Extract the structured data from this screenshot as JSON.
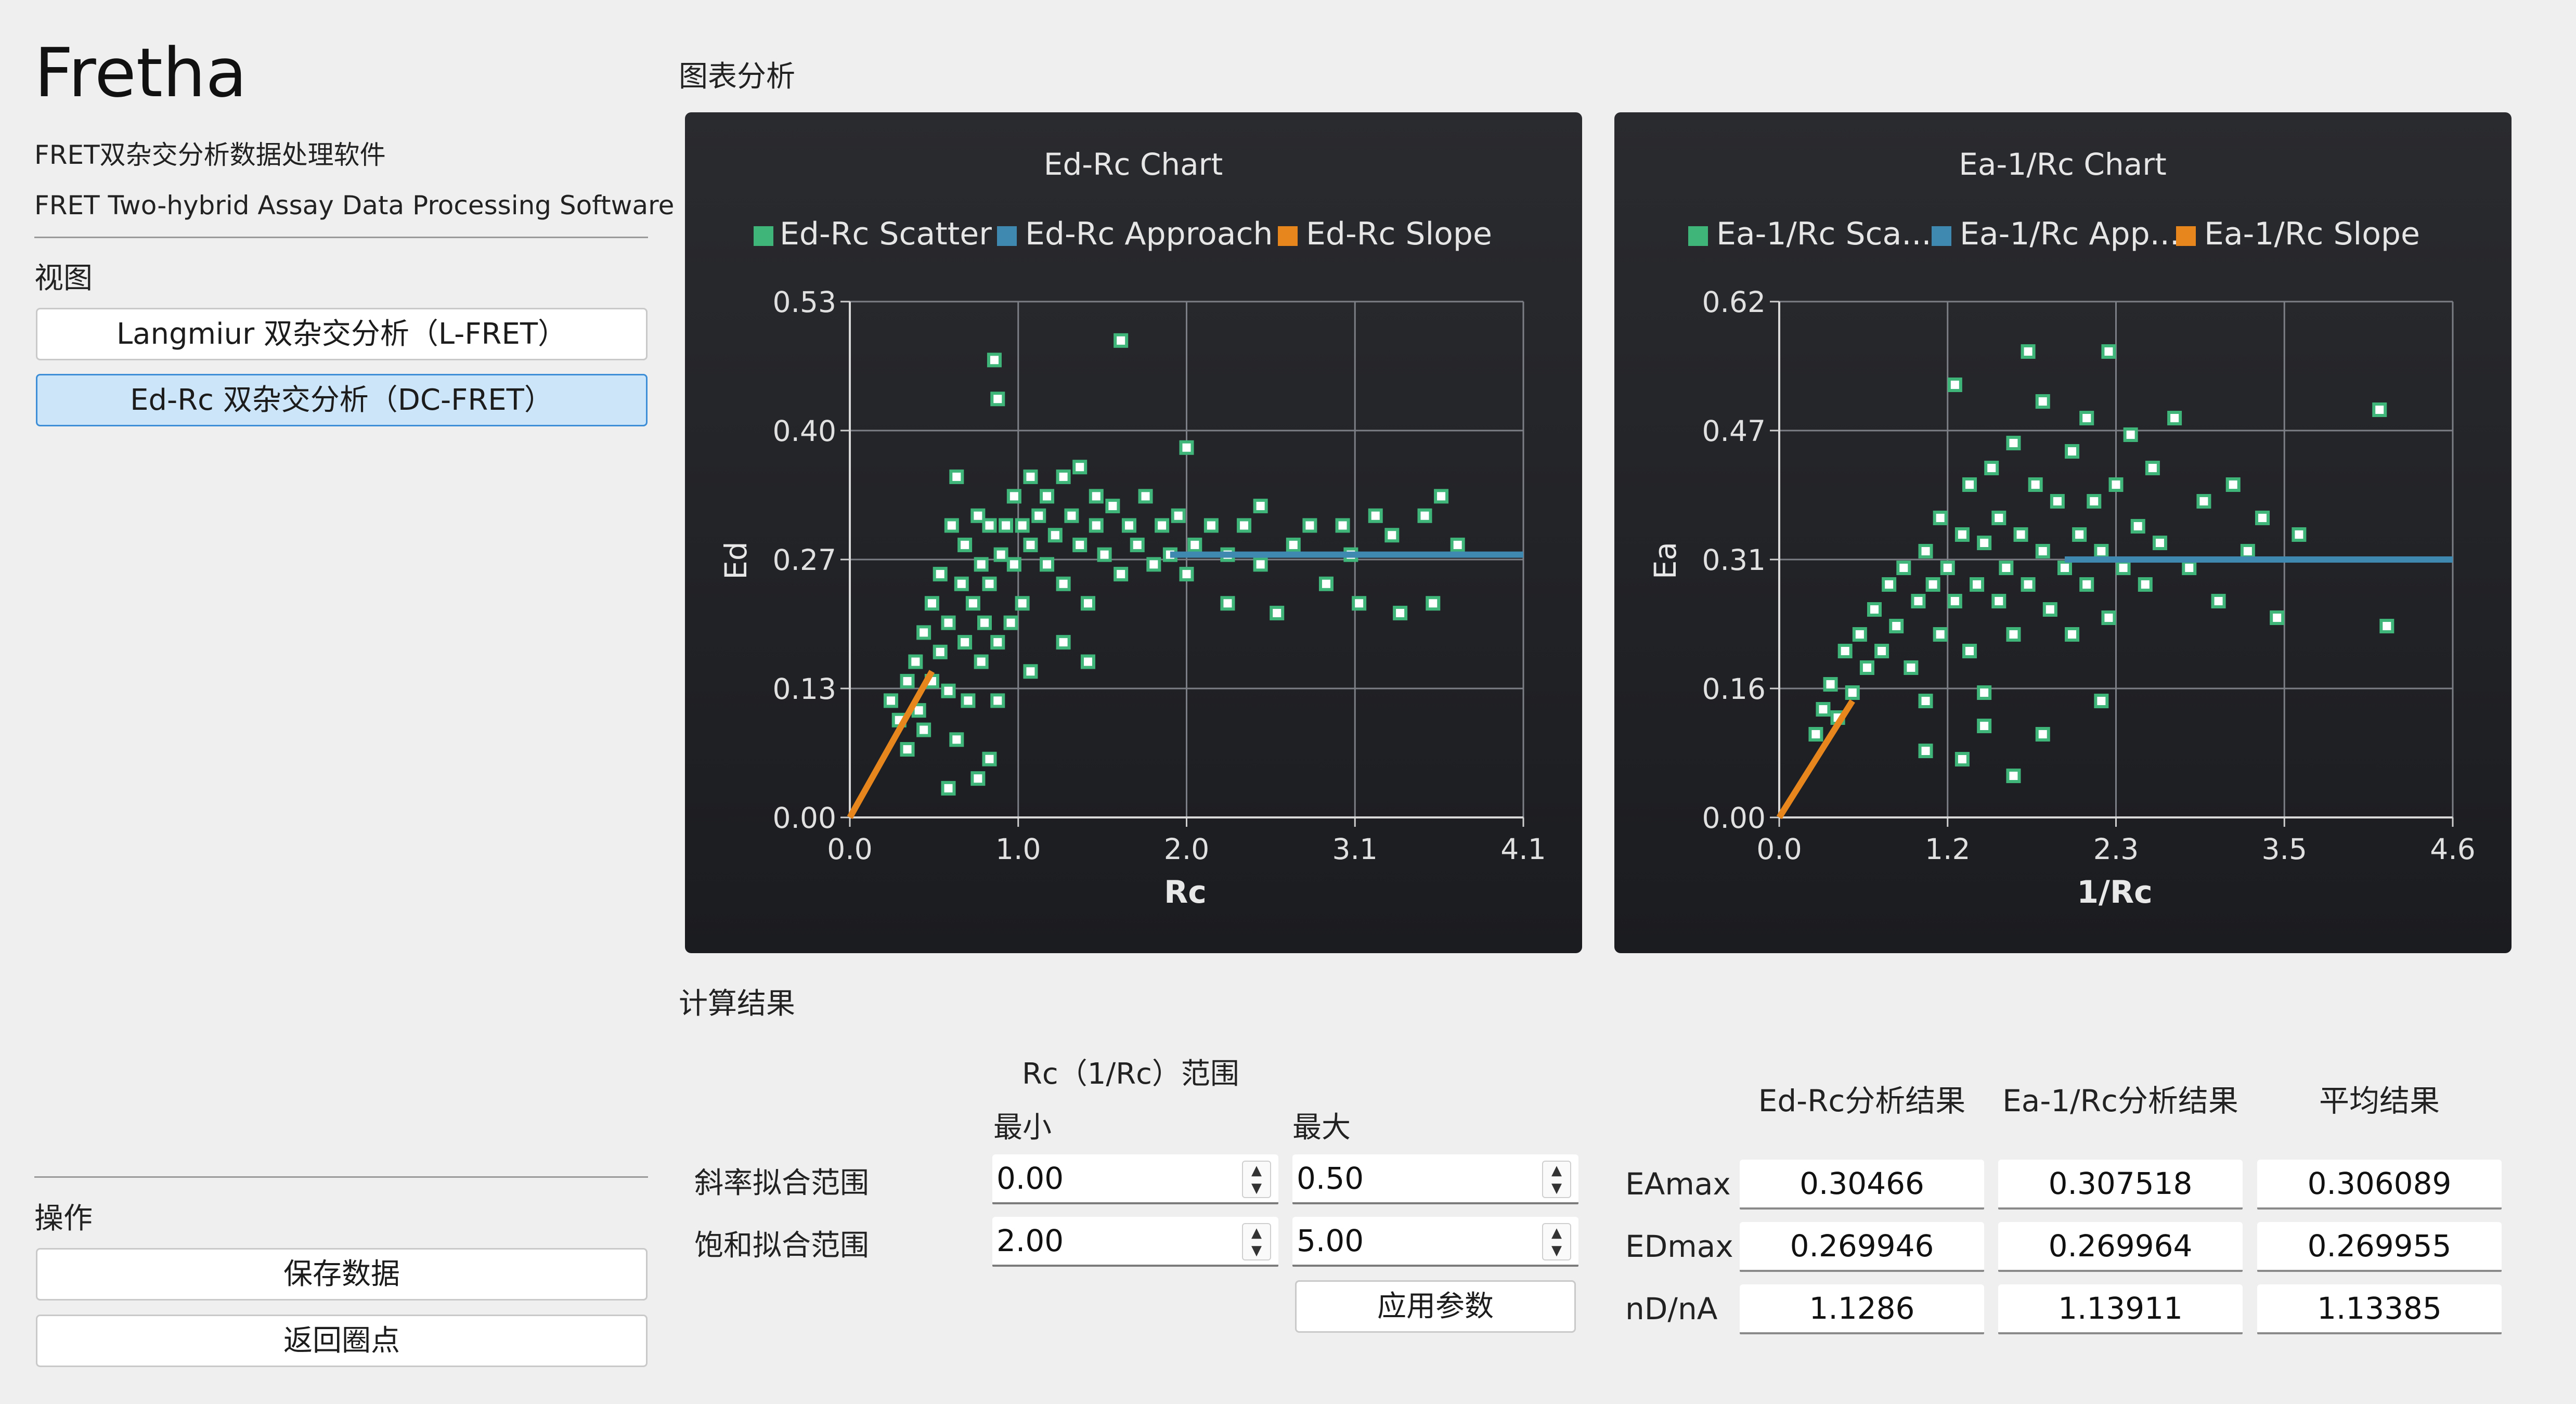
{
  "app": {
    "title": "Fretha",
    "subtitle_cn": "FRET双杂交分析数据处理软件",
    "subtitle_en": "FRET Two-hybrid Assay Data Processing Software"
  },
  "sidebar": {
    "view_label": "视图",
    "view_buttons": [
      {
        "label": "Langmiur 双杂交分析（L-FRET）",
        "active": false
      },
      {
        "label": "Ed-Rc 双杂交分析（DC-FRET）",
        "active": true
      }
    ],
    "ops_label": "操作",
    "op_buttons": [
      {
        "label": "保存数据"
      },
      {
        "label": "返回圈点"
      }
    ]
  },
  "main": {
    "chart_section_label": "图表分析",
    "results_section_label": "计算结果"
  },
  "params": {
    "range_header": "Rc（1/Rc）范围",
    "min_label": "最小",
    "max_label": "最大",
    "rows": [
      {
        "label": "斜率拟合范围",
        "min": "0.00",
        "max": "0.50"
      },
      {
        "label": "饱和拟合范围",
        "min": "2.00",
        "max": "5.00"
      }
    ],
    "apply_label": "应用参数"
  },
  "results": {
    "headers": [
      "Ed-Rc分析结果",
      "Ea-1/Rc分析结果",
      "平均结果"
    ],
    "rows": [
      {
        "label": "EAmax",
        "values": [
          "0.30466",
          "0.307518",
          "0.306089"
        ]
      },
      {
        "label": "EDmax",
        "values": [
          "0.269946",
          "0.269964",
          "0.269955"
        ]
      },
      {
        "label": "nD/nA",
        "values": [
          "1.1286",
          "1.13911",
          "1.13385"
        ]
      }
    ]
  },
  "colors": {
    "scatter": "#3fb57a",
    "approach": "#3f88b0",
    "slope": "#e8861e"
  },
  "chart_data": [
    {
      "type": "scatter",
      "title": "Ed-Rc Chart",
      "xlabel": "Rc",
      "ylabel": "Ed",
      "xlim": [
        0.0,
        4.1
      ],
      "ylim": [
        0.0,
        0.53
      ],
      "xticks": [
        "0.0",
        "1.0",
        "2.0",
        "3.1",
        "4.1"
      ],
      "yticks": [
        "0.00",
        "0.13",
        "0.27",
        "0.40",
        "0.53"
      ],
      "grid": true,
      "legend_position": "top",
      "series": [
        {
          "name": "Ed-Rc Scatter",
          "kind": "scatter",
          "points": [
            [
              0.25,
              0.12
            ],
            [
              0.3,
              0.1
            ],
            [
              0.35,
              0.14
            ],
            [
              0.4,
              0.16
            ],
            [
              0.42,
              0.11
            ],
            [
              0.45,
              0.19
            ],
            [
              0.5,
              0.14
            ],
            [
              0.5,
              0.22
            ],
            [
              0.55,
              0.17
            ],
            [
              0.55,
              0.25
            ],
            [
              0.6,
              0.2
            ],
            [
              0.6,
              0.13
            ],
            [
              0.62,
              0.3
            ],
            [
              0.65,
              0.35
            ],
            [
              0.68,
              0.24
            ],
            [
              0.7,
              0.18
            ],
            [
              0.7,
              0.28
            ],
            [
              0.72,
              0.12
            ],
            [
              0.75,
              0.22
            ],
            [
              0.78,
              0.31
            ],
            [
              0.8,
              0.26
            ],
            [
              0.8,
              0.16
            ],
            [
              0.82,
              0.2
            ],
            [
              0.85,
              0.3
            ],
            [
              0.85,
              0.24
            ],
            [
              0.88,
              0.47
            ],
            [
              0.9,
              0.43
            ],
            [
              0.9,
              0.18
            ],
            [
              0.92,
              0.27
            ],
            [
              0.95,
              0.3
            ],
            [
              0.98,
              0.2
            ],
            [
              1.0,
              0.33
            ],
            [
              1.0,
              0.26
            ],
            [
              1.05,
              0.3
            ],
            [
              1.05,
              0.22
            ],
            [
              1.1,
              0.28
            ],
            [
              1.1,
              0.35
            ],
            [
              1.15,
              0.31
            ],
            [
              1.2,
              0.26
            ],
            [
              1.2,
              0.33
            ],
            [
              1.25,
              0.29
            ],
            [
              1.3,
              0.35
            ],
            [
              1.3,
              0.24
            ],
            [
              1.35,
              0.31
            ],
            [
              1.4,
              0.28
            ],
            [
              1.4,
              0.36
            ],
            [
              1.45,
              0.22
            ],
            [
              1.5,
              0.3
            ],
            [
              1.5,
              0.33
            ],
            [
              1.55,
              0.27
            ],
            [
              1.6,
              0.32
            ],
            [
              1.65,
              0.49
            ],
            [
              1.65,
              0.25
            ],
            [
              1.7,
              0.3
            ],
            [
              1.75,
              0.28
            ],
            [
              1.8,
              0.33
            ],
            [
              1.85,
              0.26
            ],
            [
              1.9,
              0.3
            ],
            [
              1.95,
              0.27
            ],
            [
              2.0,
              0.31
            ],
            [
              2.05,
              0.38
            ],
            [
              2.05,
              0.25
            ],
            [
              2.1,
              0.28
            ],
            [
              2.2,
              0.3
            ],
            [
              2.3,
              0.22
            ],
            [
              2.3,
              0.27
            ],
            [
              2.4,
              0.3
            ],
            [
              2.5,
              0.26
            ],
            [
              2.5,
              0.32
            ],
            [
              2.6,
              0.21
            ],
            [
              2.7,
              0.28
            ],
            [
              2.8,
              0.3
            ],
            [
              2.9,
              0.24
            ],
            [
              3.0,
              0.3
            ],
            [
              3.05,
              0.27
            ],
            [
              3.1,
              0.22
            ],
            [
              3.2,
              0.31
            ],
            [
              3.3,
              0.29
            ],
            [
              3.35,
              0.21
            ],
            [
              3.5,
              0.31
            ],
            [
              3.55,
              0.22
            ],
            [
              3.6,
              0.33
            ],
            [
              3.7,
              0.28
            ],
            [
              0.35,
              0.07
            ],
            [
              0.45,
              0.09
            ],
            [
              0.6,
              0.03
            ],
            [
              0.65,
              0.08
            ],
            [
              0.78,
              0.04
            ],
            [
              0.85,
              0.06
            ],
            [
              0.9,
              0.12
            ],
            [
              1.1,
              0.15
            ],
            [
              1.3,
              0.18
            ],
            [
              1.45,
              0.16
            ]
          ]
        },
        {
          "name": "Ed-Rc Approach",
          "kind": "line",
          "points": [
            [
              1.95,
              0.27
            ],
            [
              4.1,
              0.27
            ]
          ]
        },
        {
          "name": "Ed-Rc Slope",
          "kind": "line",
          "points": [
            [
              0.0,
              0.0
            ],
            [
              0.5,
              0.15
            ]
          ]
        }
      ]
    },
    {
      "type": "scatter",
      "title": "Ea-1/Rc Chart",
      "xlabel": "1/Rc",
      "ylabel": "Ea",
      "xlim": [
        0.0,
        4.6
      ],
      "ylim": [
        0.0,
        0.62
      ],
      "xticks": [
        "0.0",
        "1.2",
        "2.3",
        "3.5",
        "4.6"
      ],
      "yticks": [
        "0.00",
        "0.16",
        "0.31",
        "0.47",
        "0.62"
      ],
      "grid": true,
      "legend_position": "top",
      "series": [
        {
          "name": "Ea-1/Rc Sca...",
          "kind": "scatter",
          "points": [
            [
              0.25,
              0.1
            ],
            [
              0.3,
              0.13
            ],
            [
              0.35,
              0.16
            ],
            [
              0.4,
              0.12
            ],
            [
              0.45,
              0.2
            ],
            [
              0.5,
              0.15
            ],
            [
              0.55,
              0.22
            ],
            [
              0.6,
              0.18
            ],
            [
              0.65,
              0.25
            ],
            [
              0.7,
              0.2
            ],
            [
              0.75,
              0.28
            ],
            [
              0.8,
              0.23
            ],
            [
              0.85,
              0.3
            ],
            [
              0.9,
              0.18
            ],
            [
              0.95,
              0.26
            ],
            [
              1.0,
              0.32
            ],
            [
              1.0,
              0.14
            ],
            [
              1.05,
              0.28
            ],
            [
              1.1,
              0.36
            ],
            [
              1.1,
              0.22
            ],
            [
              1.15,
              0.3
            ],
            [
              1.2,
              0.26
            ],
            [
              1.2,
              0.52
            ],
            [
              1.25,
              0.34
            ],
            [
              1.3,
              0.2
            ],
            [
              1.3,
              0.4
            ],
            [
              1.35,
              0.28
            ],
            [
              1.4,
              0.33
            ],
            [
              1.4,
              0.15
            ],
            [
              1.45,
              0.42
            ],
            [
              1.5,
              0.26
            ],
            [
              1.5,
              0.36
            ],
            [
              1.55,
              0.3
            ],
            [
              1.6,
              0.45
            ],
            [
              1.6,
              0.22
            ],
            [
              1.65,
              0.34
            ],
            [
              1.7,
              0.56
            ],
            [
              1.7,
              0.28
            ],
            [
              1.75,
              0.4
            ],
            [
              1.8,
              0.32
            ],
            [
              1.8,
              0.5
            ],
            [
              1.85,
              0.25
            ],
            [
              1.9,
              0.38
            ],
            [
              1.95,
              0.3
            ],
            [
              2.0,
              0.44
            ],
            [
              2.0,
              0.22
            ],
            [
              2.05,
              0.34
            ],
            [
              2.1,
              0.48
            ],
            [
              2.1,
              0.28
            ],
            [
              2.15,
              0.38
            ],
            [
              2.2,
              0.32
            ],
            [
              2.25,
              0.56
            ],
            [
              2.25,
              0.24
            ],
            [
              2.3,
              0.4
            ],
            [
              2.35,
              0.3
            ],
            [
              2.4,
              0.46
            ],
            [
              2.45,
              0.35
            ],
            [
              2.5,
              0.28
            ],
            [
              2.55,
              0.42
            ],
            [
              2.6,
              0.33
            ],
            [
              2.7,
              0.48
            ],
            [
              2.8,
              0.3
            ],
            [
              2.9,
              0.38
            ],
            [
              3.0,
              0.26
            ],
            [
              3.1,
              0.4
            ],
            [
              3.2,
              0.32
            ],
            [
              3.3,
              0.36
            ],
            [
              3.4,
              0.24
            ],
            [
              3.55,
              0.34
            ],
            [
              4.1,
              0.49
            ],
            [
              4.15,
              0.23
            ],
            [
              1.25,
              0.07
            ],
            [
              1.6,
              0.05
            ],
            [
              1.8,
              0.1
            ],
            [
              2.2,
              0.14
            ],
            [
              1.0,
              0.08
            ],
            [
              1.4,
              0.11
            ]
          ]
        },
        {
          "name": "Ea-1/Rc App...",
          "kind": "line",
          "points": [
            [
              1.95,
              0.31
            ],
            [
              4.6,
              0.31
            ]
          ]
        },
        {
          "name": "Ea-1/Rc Slope",
          "kind": "line",
          "points": [
            [
              0.0,
              0.0
            ],
            [
              0.5,
              0.14
            ]
          ]
        }
      ]
    }
  ]
}
